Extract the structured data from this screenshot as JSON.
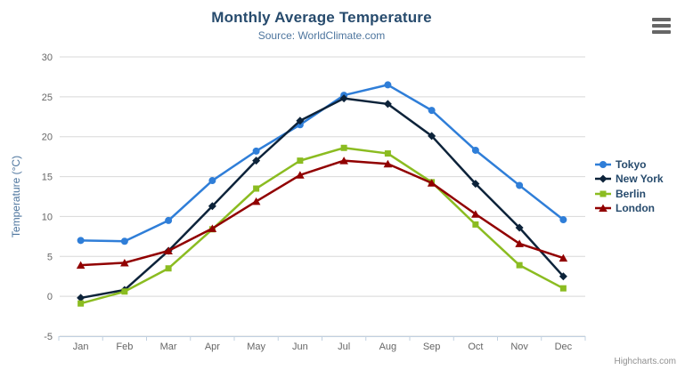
{
  "chart_data": {
    "type": "line",
    "title": "Monthly Average Temperature",
    "subtitle": "Source: WorldClimate.com",
    "xlabel": "",
    "ylabel": "Temperature (°C)",
    "categories": [
      "Jan",
      "Feb",
      "Mar",
      "Apr",
      "May",
      "Jun",
      "Jul",
      "Aug",
      "Sep",
      "Oct",
      "Nov",
      "Dec"
    ],
    "series": [
      {
        "name": "Tokyo",
        "color": "#2f7ed8",
        "marker": "circle",
        "values": [
          7.0,
          6.9,
          9.5,
          14.5,
          18.2,
          21.5,
          25.2,
          26.5,
          23.3,
          18.3,
          13.9,
          9.6
        ]
      },
      {
        "name": "New York",
        "color": "#0d233a",
        "marker": "diamond",
        "values": [
          -0.2,
          0.8,
          5.7,
          11.3,
          17.0,
          22.0,
          24.8,
          24.1,
          20.1,
          14.1,
          8.6,
          2.5
        ]
      },
      {
        "name": "Berlin",
        "color": "#8bbc21",
        "marker": "square",
        "values": [
          -0.9,
          0.6,
          3.5,
          8.4,
          13.5,
          17.0,
          18.6,
          17.9,
          14.3,
          9.0,
          3.9,
          1.0
        ]
      },
      {
        "name": "London",
        "color": "#910000",
        "marker": "triangle",
        "values": [
          3.9,
          4.2,
          5.7,
          8.5,
          11.9,
          15.2,
          17.0,
          16.6,
          14.2,
          10.3,
          6.6,
          4.8
        ]
      }
    ],
    "ylim": [
      -5,
      30
    ],
    "ytick_interval": 5,
    "grid": true,
    "legend_position": "right"
  },
  "colors": {
    "title": "#274b6d",
    "subtitle": "#4d759e",
    "axis_title": "#4d759e",
    "tick_label": "#666666",
    "grid_line": "#d8d8d8",
    "axis_line": "#c0d0e0",
    "legend_text": "#274b6d",
    "credits": "#909090",
    "menu_icon": "#666666"
  },
  "export_menu": {
    "icon": "hamburger-icon"
  },
  "credits": {
    "label": "Highcharts.com"
  }
}
